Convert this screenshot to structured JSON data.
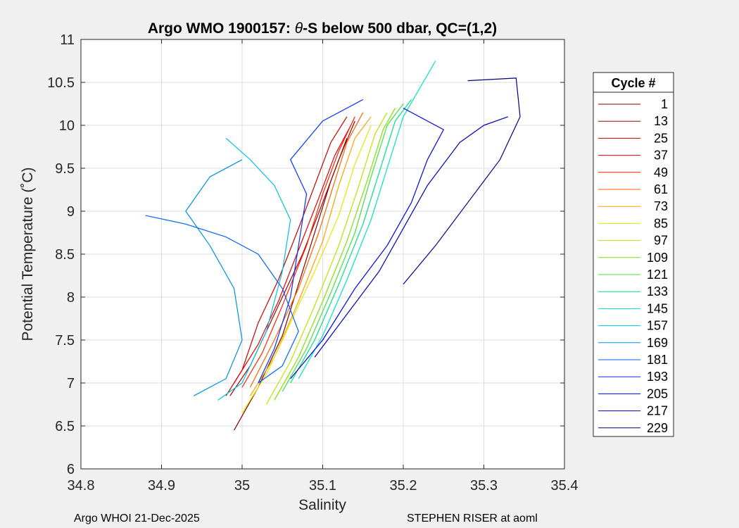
{
  "chart_data": {
    "type": "line",
    "title_prefix": "Argo WMO 1900157: ",
    "title_theta": "θ",
    "title_suffix": "-S below 500 dbar,  QC=(1,2)",
    "xlabel": "Salinity",
    "ylabel": "Potential Temperature (˚C)",
    "xlim": [
      34.8,
      35.4
    ],
    "ylim": [
      6,
      11
    ],
    "x_ticks": [
      34.8,
      34.9,
      35,
      35.1,
      35.2,
      35.3,
      35.4
    ],
    "x_tick_labels": [
      "34.8",
      "34.9",
      "35",
      "35.1",
      "35.2",
      "35.3",
      "35.4"
    ],
    "y_ticks": [
      6,
      6.5,
      7,
      7.5,
      8,
      8.5,
      9,
      9.5,
      10,
      10.5,
      11
    ],
    "y_tick_labels": [
      "6",
      "6.5",
      "7",
      "7.5",
      "8",
      "8.5",
      "9",
      "9.5",
      "10",
      "10.5",
      "11"
    ],
    "grid": true,
    "legend_title": "Cycle #",
    "legend_placement": "right",
    "series": [
      {
        "name": "1",
        "color": "#800000",
        "points": [
          [
            34.99,
            6.45
          ],
          [
            35.02,
            6.95
          ],
          [
            35.05,
            7.55
          ],
          [
            35.07,
            8.15
          ],
          [
            35.09,
            8.75
          ],
          [
            35.11,
            9.35
          ],
          [
            35.13,
            9.85
          ]
        ]
      },
      {
        "name": "13",
        "color": "#a00000",
        "points": [
          [
            34.985,
            6.85
          ],
          [
            35.01,
            7.2
          ],
          [
            35.03,
            7.6
          ],
          [
            35.05,
            8.0
          ],
          [
            35.075,
            8.5
          ],
          [
            35.1,
            9.1
          ],
          [
            35.12,
            9.6
          ],
          [
            35.14,
            10.05
          ]
        ]
      },
      {
        "name": "25",
        "color": "#c00000",
        "points": [
          [
            34.98,
            6.85
          ],
          [
            35.0,
            7.15
          ],
          [
            35.02,
            7.7
          ],
          [
            35.045,
            8.2
          ],
          [
            35.07,
            8.8
          ],
          [
            35.09,
            9.3
          ],
          [
            35.11,
            9.8
          ],
          [
            35.13,
            10.1
          ]
        ]
      },
      {
        "name": "37",
        "color": "#e00000",
        "points": [
          [
            34.99,
            7.0
          ],
          [
            35.02,
            7.45
          ],
          [
            35.045,
            7.95
          ],
          [
            35.07,
            8.55
          ],
          [
            35.095,
            9.15
          ],
          [
            35.115,
            9.65
          ],
          [
            35.135,
            10.0
          ]
        ]
      },
      {
        "name": "49",
        "color": "#ff2000",
        "points": [
          [
            35.0,
            6.95
          ],
          [
            35.025,
            7.35
          ],
          [
            35.05,
            7.9
          ],
          [
            35.08,
            8.6
          ],
          [
            35.1,
            9.2
          ],
          [
            35.12,
            9.7
          ],
          [
            35.14,
            10.1
          ]
        ]
      },
      {
        "name": "61",
        "color": "#ff6000",
        "points": [
          [
            35.01,
            6.95
          ],
          [
            35.04,
            7.5
          ],
          [
            35.07,
            8.1
          ],
          [
            35.095,
            8.75
          ],
          [
            35.115,
            9.35
          ],
          [
            35.13,
            9.8
          ],
          [
            35.15,
            10.15
          ]
        ]
      },
      {
        "name": "73",
        "color": "#ffa000",
        "points": [
          [
            35.01,
            6.85
          ],
          [
            35.04,
            7.3
          ],
          [
            35.07,
            7.95
          ],
          [
            35.1,
            8.65
          ],
          [
            35.12,
            9.3
          ],
          [
            35.14,
            9.85
          ],
          [
            35.16,
            10.1
          ]
        ]
      },
      {
        "name": "85",
        "color": "#e6e600",
        "points": [
          [
            35.0,
            6.65
          ],
          [
            35.03,
            7.1
          ],
          [
            35.06,
            7.7
          ],
          [
            35.09,
            8.3
          ],
          [
            35.12,
            8.95
          ],
          [
            35.14,
            9.55
          ],
          [
            35.16,
            10.0
          ]
        ]
      },
      {
        "name": "97",
        "color": "#c0e000",
        "points": [
          [
            35.03,
            6.75
          ],
          [
            35.06,
            7.25
          ],
          [
            35.09,
            7.9
          ],
          [
            35.12,
            8.6
          ],
          [
            35.145,
            9.3
          ],
          [
            35.165,
            9.9
          ],
          [
            35.18,
            10.15
          ]
        ]
      },
      {
        "name": "109",
        "color": "#80e000",
        "points": [
          [
            35.04,
            6.8
          ],
          [
            35.07,
            7.3
          ],
          [
            35.1,
            7.95
          ],
          [
            35.13,
            8.65
          ],
          [
            35.155,
            9.35
          ],
          [
            35.175,
            9.95
          ],
          [
            35.19,
            10.2
          ]
        ]
      },
      {
        "name": "121",
        "color": "#40e040",
        "points": [
          [
            35.05,
            6.9
          ],
          [
            35.08,
            7.4
          ],
          [
            35.11,
            8.05
          ],
          [
            35.14,
            8.75
          ],
          [
            35.16,
            9.4
          ],
          [
            35.18,
            10.0
          ],
          [
            35.2,
            10.25
          ]
        ]
      },
      {
        "name": "133",
        "color": "#00e080",
        "points": [
          [
            35.06,
            7.0
          ],
          [
            35.09,
            7.5
          ],
          [
            35.12,
            8.15
          ],
          [
            35.15,
            8.85
          ],
          [
            35.17,
            9.45
          ],
          [
            35.19,
            10.05
          ],
          [
            35.21,
            10.3
          ]
        ]
      },
      {
        "name": "145",
        "color": "#00e0c0",
        "points": [
          [
            35.07,
            7.05
          ],
          [
            35.1,
            7.55
          ],
          [
            35.13,
            8.2
          ],
          [
            35.16,
            8.9
          ],
          [
            35.18,
            9.5
          ],
          [
            35.2,
            10.1
          ],
          [
            35.24,
            10.75
          ]
        ]
      },
      {
        "name": "157",
        "color": "#00c0e0",
        "points": [
          [
            34.97,
            6.8
          ],
          [
            35.0,
            7.0
          ],
          [
            35.03,
            7.6
          ],
          [
            35.05,
            8.3
          ],
          [
            35.06,
            8.9
          ],
          [
            35.04,
            9.3
          ],
          [
            35.01,
            9.6
          ],
          [
            34.98,
            9.85
          ]
        ]
      },
      {
        "name": "169",
        "color": "#0090e0",
        "points": [
          [
            34.94,
            6.85
          ],
          [
            34.98,
            7.05
          ],
          [
            35.0,
            7.5
          ],
          [
            34.99,
            8.1
          ],
          [
            34.96,
            8.6
          ],
          [
            34.93,
            9.0
          ],
          [
            34.96,
            9.4
          ],
          [
            35.0,
            9.6
          ]
        ]
      },
      {
        "name": "181",
        "color": "#0060ff",
        "points": [
          [
            34.88,
            8.95
          ],
          [
            34.93,
            8.85
          ],
          [
            34.98,
            8.7
          ],
          [
            35.02,
            8.5
          ],
          [
            35.05,
            8.1
          ],
          [
            35.07,
            7.6
          ],
          [
            35.05,
            7.2
          ],
          [
            35.02,
            7.0
          ]
        ]
      },
      {
        "name": "193",
        "color": "#0030ff",
        "points": [
          [
            35.02,
            7.0
          ],
          [
            35.04,
            7.4
          ],
          [
            35.06,
            8.0
          ],
          [
            35.07,
            8.6
          ],
          [
            35.08,
            9.2
          ],
          [
            35.06,
            9.6
          ],
          [
            35.1,
            10.05
          ],
          [
            35.15,
            10.3
          ]
        ]
      },
      {
        "name": "205",
        "color": "#0000e0",
        "points": [
          [
            35.06,
            7.05
          ],
          [
            35.1,
            7.5
          ],
          [
            35.14,
            8.1
          ],
          [
            35.18,
            8.6
          ],
          [
            35.21,
            9.1
          ],
          [
            35.23,
            9.6
          ],
          [
            35.25,
            9.95
          ],
          [
            35.2,
            10.2
          ]
        ]
      },
      {
        "name": "217",
        "color": "#0000b0",
        "points": [
          [
            35.09,
            7.3
          ],
          [
            35.13,
            7.8
          ],
          [
            35.17,
            8.3
          ],
          [
            35.2,
            8.8
          ],
          [
            35.23,
            9.3
          ],
          [
            35.27,
            9.8
          ],
          [
            35.3,
            10.0
          ],
          [
            35.33,
            10.1
          ]
        ]
      },
      {
        "name": "229",
        "color": "#000080",
        "points": [
          [
            35.2,
            8.15
          ],
          [
            35.24,
            8.6
          ],
          [
            35.28,
            9.1
          ],
          [
            35.32,
            9.6
          ],
          [
            35.345,
            10.1
          ],
          [
            35.34,
            10.55
          ],
          [
            35.28,
            10.52
          ]
        ]
      }
    ]
  },
  "footer": {
    "left": "Argo WHOI 21-Dec-2025",
    "right": "STEPHEN RISER at aoml"
  }
}
